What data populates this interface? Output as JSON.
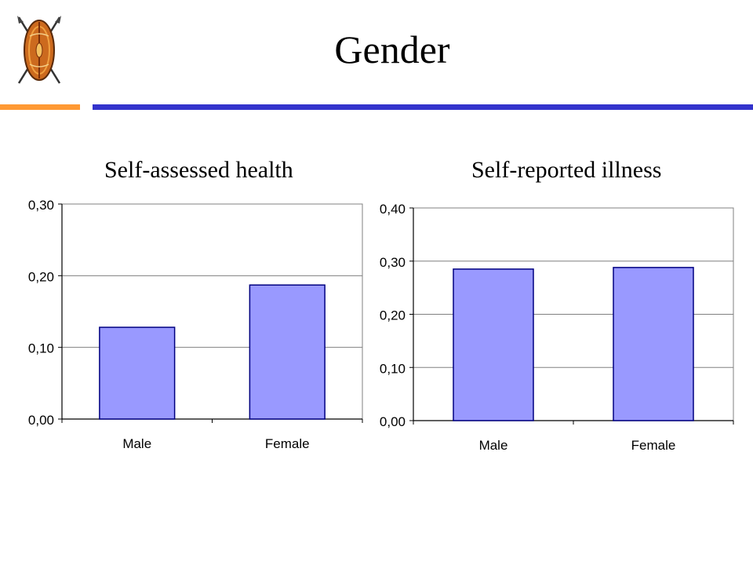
{
  "slide": {
    "title": "Gender",
    "brand_colors": {
      "orange": "#ff9933",
      "blue": "#3333cc"
    },
    "logo_icon": "maasai-shield-icon"
  },
  "chart_data": [
    {
      "type": "bar",
      "title": "Self-assessed health",
      "categories": [
        "Male",
        "Female"
      ],
      "values": [
        0.128,
        0.187
      ],
      "ylim": [
        0,
        0.3
      ],
      "yticks": [
        "0,00",
        "0,10",
        "0,20",
        "0,30"
      ],
      "ytick_values": [
        0,
        0.1,
        0.2,
        0.3
      ],
      "grid": true,
      "bar_color": "#9999ff",
      "bar_edge": "#000080"
    },
    {
      "type": "bar",
      "title": "Self-reported illness",
      "categories": [
        "Male",
        "Female"
      ],
      "values": [
        0.285,
        0.288
      ],
      "ylim": [
        0,
        0.4
      ],
      "yticks": [
        "0,00",
        "0,10",
        "0,20",
        "0,30",
        "0,40"
      ],
      "ytick_values": [
        0,
        0.1,
        0.2,
        0.3,
        0.4
      ],
      "grid": true,
      "bar_color": "#9999ff",
      "bar_edge": "#000080"
    }
  ]
}
